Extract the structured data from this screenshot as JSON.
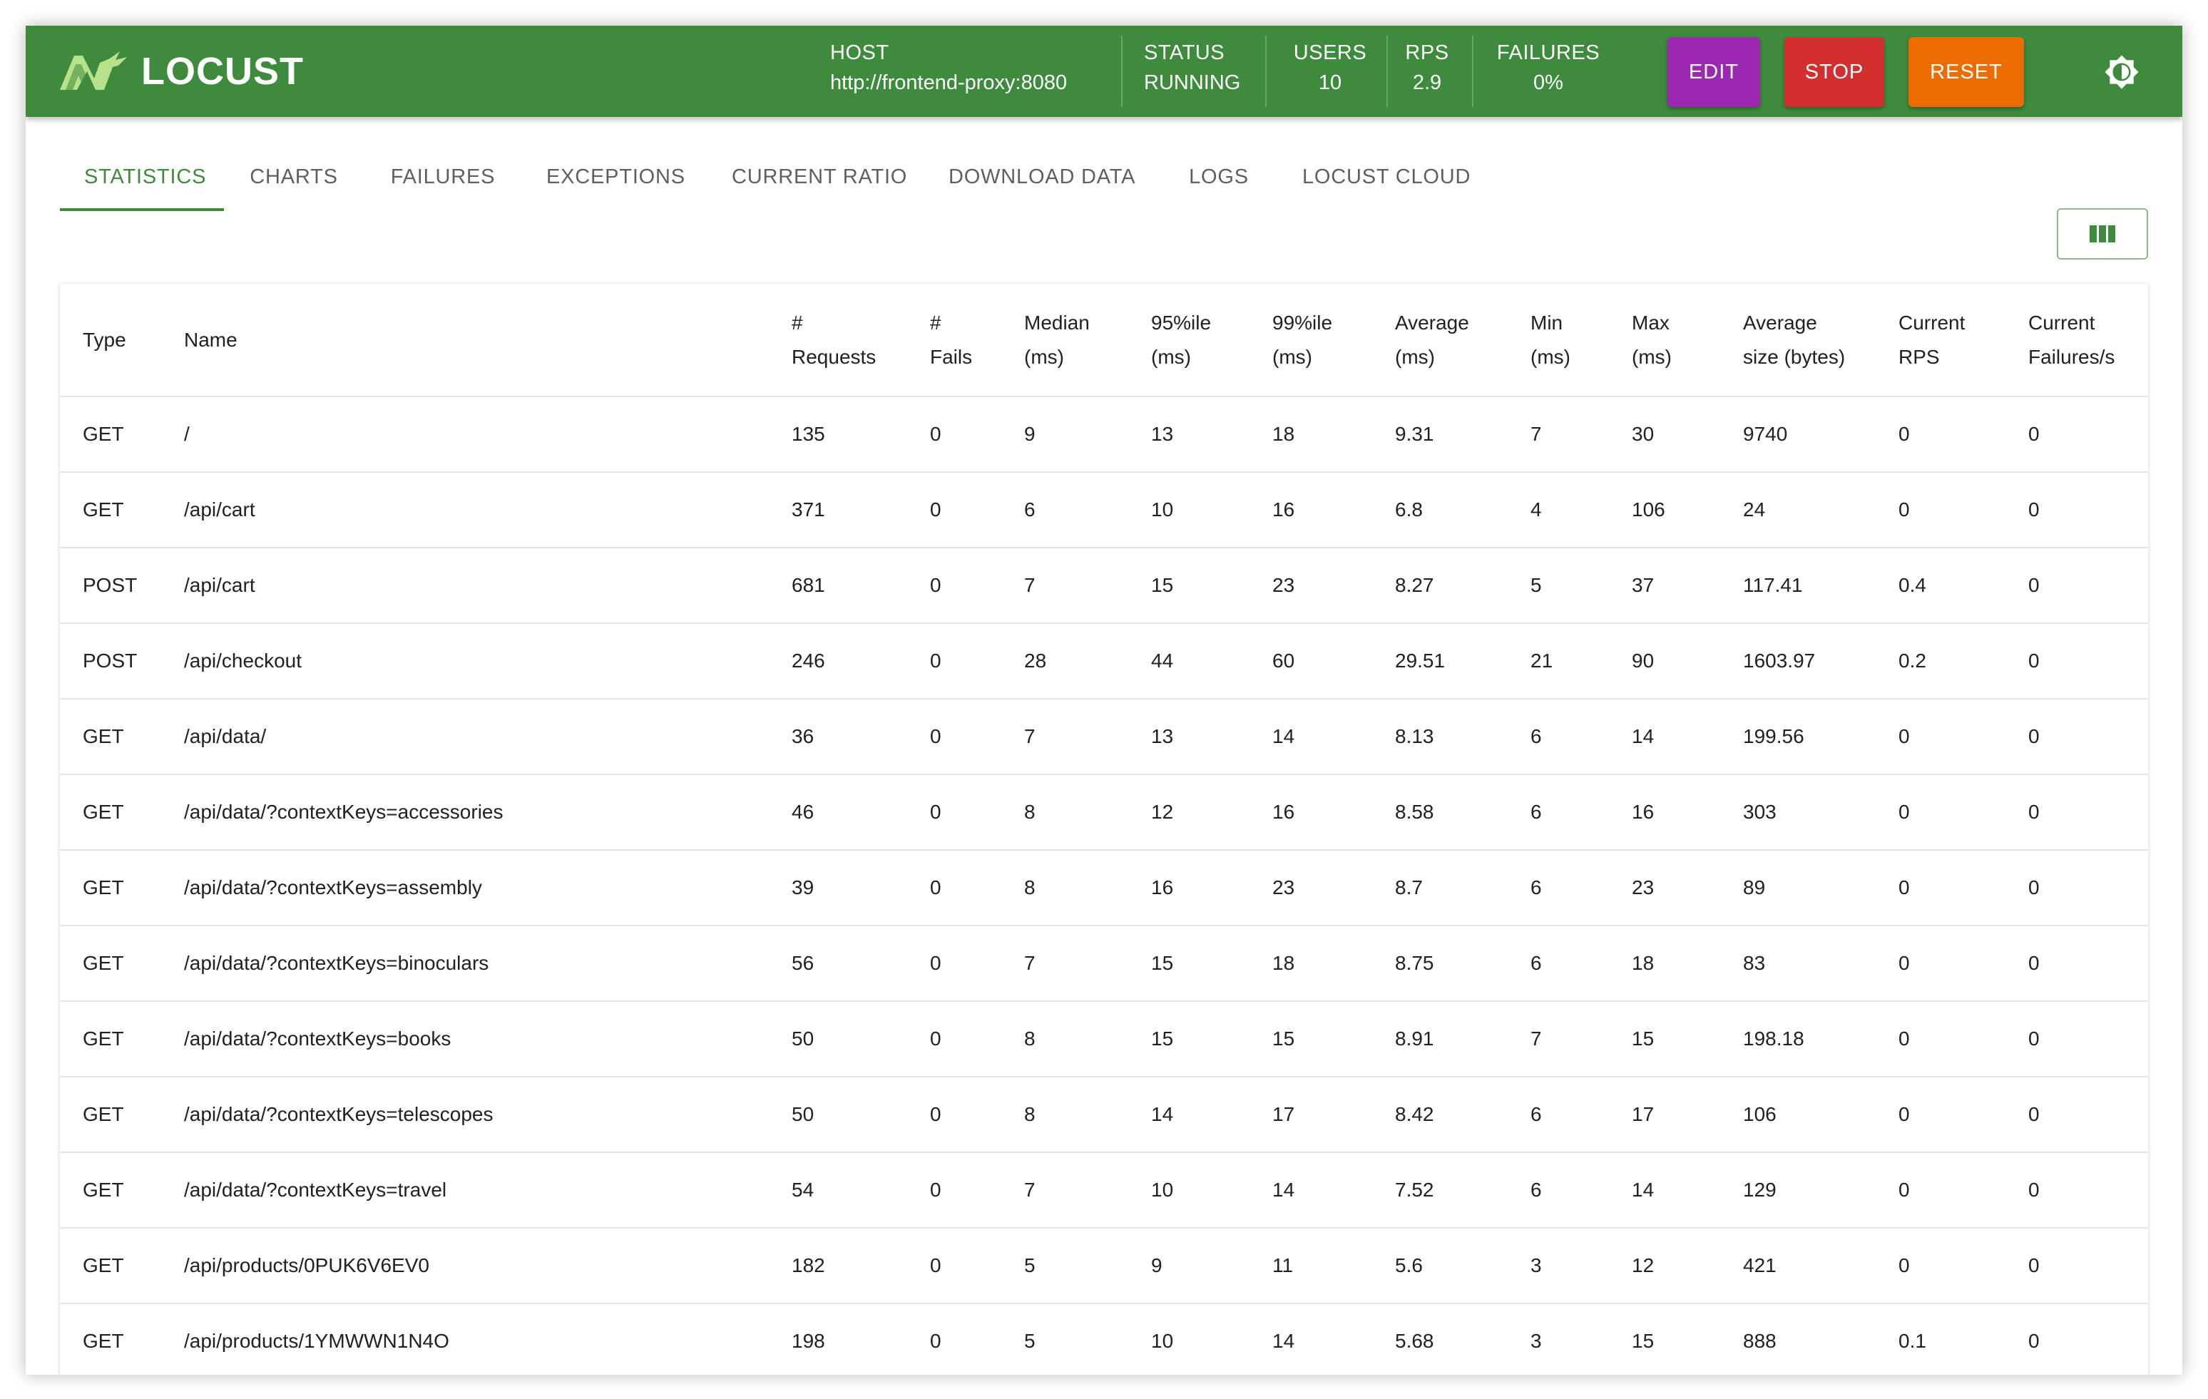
{
  "app": {
    "logo_text": "LOCUST"
  },
  "header": {
    "host_label": "HOST",
    "host_value": "http://frontend-proxy:8080",
    "status_label": "STATUS",
    "status_value": "RUNNING",
    "users_label": "USERS",
    "users_value": "10",
    "rps_label": "RPS",
    "rps_value": "2.9",
    "failures_label": "FAILURES",
    "failures_value": "0%",
    "edit_label": "EDIT",
    "stop_label": "STOP",
    "reset_label": "RESET",
    "theme_icon": "brightness-icon"
  },
  "colors": {
    "header_bg": "#3f8b3d",
    "edit": "#9c27b0",
    "stop": "#d32f2f",
    "reset": "#ed6c02"
  },
  "tabs": [
    {
      "label": "STATISTICS",
      "active": true
    },
    {
      "label": "CHARTS"
    },
    {
      "label": "FAILURES"
    },
    {
      "label": "EXCEPTIONS"
    },
    {
      "label": "CURRENT RATIO"
    },
    {
      "label": "DOWNLOAD DATA"
    },
    {
      "label": "LOGS"
    },
    {
      "label": "LOCUST CLOUD"
    }
  ],
  "table": {
    "headers": [
      [
        "Type"
      ],
      [
        "Name"
      ],
      [
        "#",
        "Requests"
      ],
      [
        "#",
        "Fails"
      ],
      [
        "Median",
        "(ms)"
      ],
      [
        "95%ile",
        "(ms)"
      ],
      [
        "99%ile",
        "(ms)"
      ],
      [
        "Average",
        "(ms)"
      ],
      [
        "Min",
        "(ms)"
      ],
      [
        "Max",
        "(ms)"
      ],
      [
        "Average",
        "size (bytes)"
      ],
      [
        "Current",
        "RPS"
      ],
      [
        "Current",
        "Failures/s"
      ]
    ],
    "rows": [
      [
        "GET",
        "/",
        "135",
        "0",
        "9",
        "13",
        "18",
        "9.31",
        "7",
        "30",
        "9740",
        "0",
        "0"
      ],
      [
        "GET",
        "/api/cart",
        "371",
        "0",
        "6",
        "10",
        "16",
        "6.8",
        "4",
        "106",
        "24",
        "0",
        "0"
      ],
      [
        "POST",
        "/api/cart",
        "681",
        "0",
        "7",
        "15",
        "23",
        "8.27",
        "5",
        "37",
        "117.41",
        "0.4",
        "0"
      ],
      [
        "POST",
        "/api/checkout",
        "246",
        "0",
        "28",
        "44",
        "60",
        "29.51",
        "21",
        "90",
        "1603.97",
        "0.2",
        "0"
      ],
      [
        "GET",
        "/api/data/",
        "36",
        "0",
        "7",
        "13",
        "14",
        "8.13",
        "6",
        "14",
        "199.56",
        "0",
        "0"
      ],
      [
        "GET",
        "/api/data/?contextKeys=accessories",
        "46",
        "0",
        "8",
        "12",
        "16",
        "8.58",
        "6",
        "16",
        "303",
        "0",
        "0"
      ],
      [
        "GET",
        "/api/data/?contextKeys=assembly",
        "39",
        "0",
        "8",
        "16",
        "23",
        "8.7",
        "6",
        "23",
        "89",
        "0",
        "0"
      ],
      [
        "GET",
        "/api/data/?contextKeys=binoculars",
        "56",
        "0",
        "7",
        "15",
        "18",
        "8.75",
        "6",
        "18",
        "83",
        "0",
        "0"
      ],
      [
        "GET",
        "/api/data/?contextKeys=books",
        "50",
        "0",
        "8",
        "15",
        "15",
        "8.91",
        "7",
        "15",
        "198.18",
        "0",
        "0"
      ],
      [
        "GET",
        "/api/data/?contextKeys=telescopes",
        "50",
        "0",
        "8",
        "14",
        "17",
        "8.42",
        "6",
        "17",
        "106",
        "0",
        "0"
      ],
      [
        "GET",
        "/api/data/?contextKeys=travel",
        "54",
        "0",
        "7",
        "10",
        "14",
        "7.52",
        "6",
        "14",
        "129",
        "0",
        "0"
      ],
      [
        "GET",
        "/api/products/0PUK6V6EV0",
        "182",
        "0",
        "5",
        "9",
        "11",
        "5.6",
        "3",
        "12",
        "421",
        "0",
        "0"
      ],
      [
        "GET",
        "/api/products/1YMWWN1N4O",
        "198",
        "0",
        "5",
        "10",
        "14",
        "5.68",
        "3",
        "15",
        "888",
        "0.1",
        "0"
      ]
    ]
  }
}
